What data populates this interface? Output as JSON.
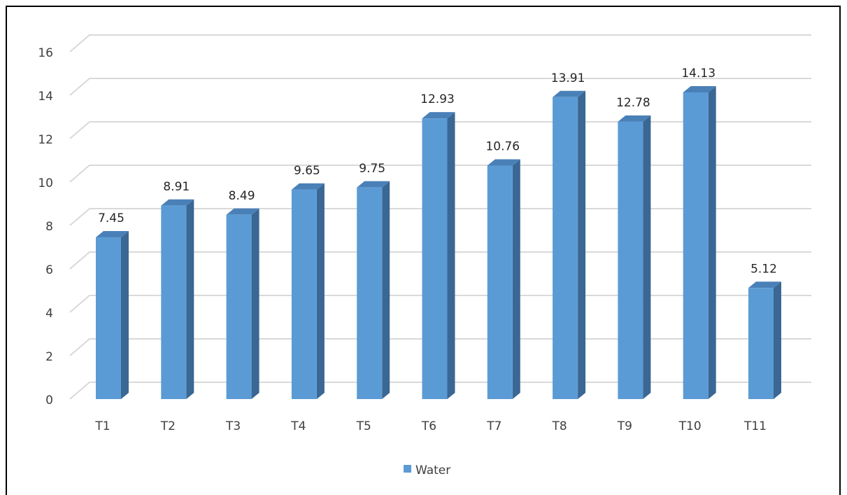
{
  "chart_data": {
    "type": "bar",
    "categories": [
      "T1",
      "T2",
      "T3",
      "T4",
      "T5",
      "T6",
      "T7",
      "T8",
      "T9",
      "T10",
      "T11"
    ],
    "series": [
      {
        "name": "Water",
        "color": "#5b9bd5",
        "values": [
          7.45,
          8.91,
          8.49,
          9.65,
          9.75,
          12.93,
          10.76,
          13.91,
          12.78,
          14.13,
          5.12
        ]
      }
    ],
    "ylim": [
      0,
      16
    ],
    "yticks": [
      0,
      2,
      4,
      6,
      8,
      10,
      12,
      14,
      16
    ],
    "grid": true,
    "legend": "bottom"
  }
}
